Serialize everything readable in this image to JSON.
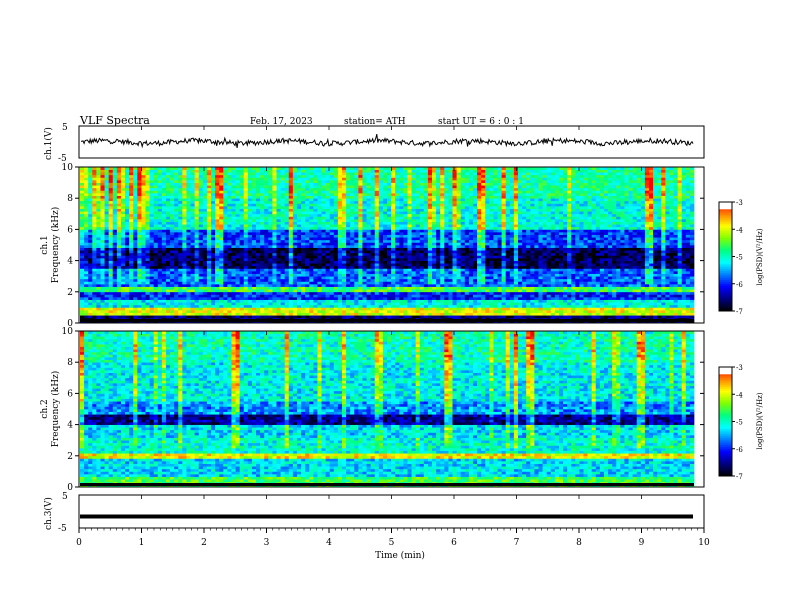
{
  "header": {
    "title": "VLF Spectra",
    "date": "Feb. 17, 2023",
    "station": "station= ATH",
    "start": "start UT =  6 : 0 : 1"
  },
  "colors": {
    "background": "#ffffff",
    "trace": "#000000",
    "colormap": [
      "#000000",
      "#000080",
      "#0000ff",
      "#0080ff",
      "#00ffff",
      "#00ff80",
      "#80ff00",
      "#ffff00",
      "#ff8000",
      "#ff0000",
      "#ffffff"
    ]
  },
  "chart_data": [
    {
      "type": "line",
      "name": "ch1-waveform",
      "ylabel": "ch.1(V)",
      "ylim": [
        -5,
        5
      ],
      "yticks": [
        "5",
        "-5"
      ],
      "xlim": [
        0,
        10
      ],
      "level": 0,
      "color": "#000000"
    },
    {
      "type": "heatmap",
      "name": "ch1-spectrogram",
      "ylabel": "ch.1\nFrequency (kHz)",
      "ylabel_line1": "ch.1",
      "ylabel_line2": "Frequency (kHz)",
      "ylim": [
        0,
        10
      ],
      "yticks": [
        "0",
        "2",
        "4",
        "6",
        "8",
        "10"
      ],
      "xlim": [
        0,
        10
      ],
      "colorbar": {
        "label": "log(PSD)(V²/Hz)",
        "range": [
          -7,
          -3
        ],
        "ticks": [
          "-3",
          "-4",
          "-5",
          "-6",
          "-7"
        ]
      },
      "bands": [
        {
          "from": 0,
          "to": 0.5,
          "level": -6.6
        },
        {
          "from": 0.5,
          "to": 1.0,
          "level": -4.0
        },
        {
          "from": 1.0,
          "to": 1.5,
          "level": -5.2
        },
        {
          "from": 1.5,
          "to": 2.0,
          "level": -6.0
        },
        {
          "from": 2.0,
          "to": 2.3,
          "level": -4.6
        },
        {
          "from": 2.3,
          "to": 3.5,
          "level": -5.8
        },
        {
          "from": 3.5,
          "to": 4.8,
          "level": -6.7
        },
        {
          "from": 4.8,
          "to": 6.0,
          "level": -5.9
        },
        {
          "from": 6.0,
          "to": 8.0,
          "level": -5.1
        },
        {
          "from": 8.0,
          "to": 10.0,
          "level": -4.9
        }
      ]
    },
    {
      "type": "heatmap",
      "name": "ch2-spectrogram",
      "ylabel": "ch.2\nFrequency (kHz)",
      "ylabel_line1": "ch.2",
      "ylabel_line2": "Frequency (kHz)",
      "ylim": [
        0,
        10
      ],
      "yticks": [
        "0",
        "2",
        "4",
        "6",
        "8",
        "10"
      ],
      "xlim": [
        0,
        10
      ],
      "colorbar": {
        "label": "log(PSD)(V²/Hz)",
        "range": [
          -7,
          -3
        ],
        "ticks": [
          "-3",
          "-4",
          "-5",
          "-6",
          "-7"
        ]
      },
      "bands": [
        {
          "from": 0,
          "to": 0.6,
          "level": -4.6
        },
        {
          "from": 0.6,
          "to": 1.8,
          "level": -5.3
        },
        {
          "from": 1.8,
          "to": 2.1,
          "level": -3.9
        },
        {
          "from": 2.1,
          "to": 3.2,
          "level": -5.1
        },
        {
          "from": 3.2,
          "to": 4.0,
          "level": -5.3
        },
        {
          "from": 4.0,
          "to": 4.6,
          "level": -6.5
        },
        {
          "from": 4.6,
          "to": 5.5,
          "level": -5.6
        },
        {
          "from": 5.5,
          "to": 8.0,
          "level": -5.2
        },
        {
          "from": 8.0,
          "to": 10.0,
          "level": -5.0
        }
      ]
    },
    {
      "type": "line",
      "name": "ch3-waveform",
      "ylabel": "ch.3(V)",
      "ylim": [
        -5,
        5
      ],
      "yticks": [
        "5",
        "-5"
      ],
      "xlim": [
        0,
        10
      ],
      "level": -1.5,
      "color": "#000000"
    }
  ],
  "xaxis": {
    "label": "Time (min)",
    "ticks": [
      "0",
      "1",
      "2",
      "3",
      "4",
      "5",
      "6",
      "7",
      "8",
      "9",
      "10"
    ]
  }
}
